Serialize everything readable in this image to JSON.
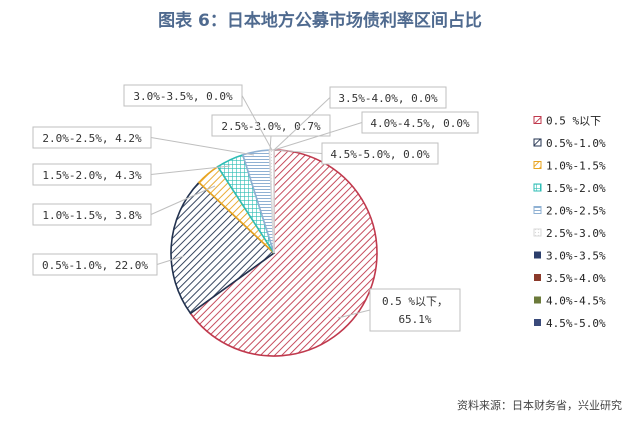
{
  "title": "图表 6：日本地方公募市场债利率区间占比",
  "source": "资料来源：日本财务省，兴业研究",
  "chart_data": {
    "type": "pie",
    "title": "图表 6：日本地方公募市场债利率区间占比",
    "legend_position": "right",
    "slices": [
      {
        "name": "0.5 %以下",
        "value": 65.1,
        "value_label": "65.1%",
        "callout": "0.5 %以下，",
        "callout2": "65.1%",
        "color": "#c0394d",
        "pattern": "diag"
      },
      {
        "name": "0.5%-1.0%",
        "value": 22.0,
        "value_label": "22.0%",
        "callout": "0.5%-1.0%, 22.0%",
        "color": "#22324f",
        "pattern": "diag"
      },
      {
        "name": "1.0%-1.5%",
        "value": 3.8,
        "value_label": "3.8%",
        "callout": "1.0%-1.5%, 3.8%",
        "color": "#e8a420",
        "pattern": "diag"
      },
      {
        "name": "1.5%-2.0%",
        "value": 4.3,
        "value_label": "4.3%",
        "callout": "1.5%-2.0%, 4.3%",
        "color": "#2dbdb5",
        "pattern": "grid"
      },
      {
        "name": "2.0%-2.5%",
        "value": 4.2,
        "value_label": "4.2%",
        "callout": "2.0%-2.5%, 4.2%",
        "color": "#8fb1d3",
        "pattern": "hlines"
      },
      {
        "name": "2.5%-3.0%",
        "value": 0.7,
        "value_label": "0.7%",
        "callout": "2.5%-3.0%, 0.7%",
        "color": "#d9d9d9",
        "pattern": "dots"
      },
      {
        "name": "3.0%-3.5%",
        "value": 0.0,
        "value_label": "0.0%",
        "callout": "3.0%-3.5%, 0.0%",
        "color": "#2b3e6b",
        "pattern": "solid"
      },
      {
        "name": "3.5%-4.0%",
        "value": 0.0,
        "value_label": "0.0%",
        "callout": "3.5%-4.0%, 0.0%",
        "color": "#8b3a2a",
        "pattern": "solid"
      },
      {
        "name": "4.0%-4.5%",
        "value": 0.0,
        "value_label": "0.0%",
        "callout": "4.0%-4.5%, 0.0%",
        "color": "#6b7a3a",
        "pattern": "solid"
      },
      {
        "name": "4.5%-5.0%",
        "value": 0.0,
        "value_label": "0.0%",
        "callout": "4.5%-5.0%, 0.0%",
        "color": "#3a4a7a",
        "pattern": "solid"
      }
    ]
  }
}
